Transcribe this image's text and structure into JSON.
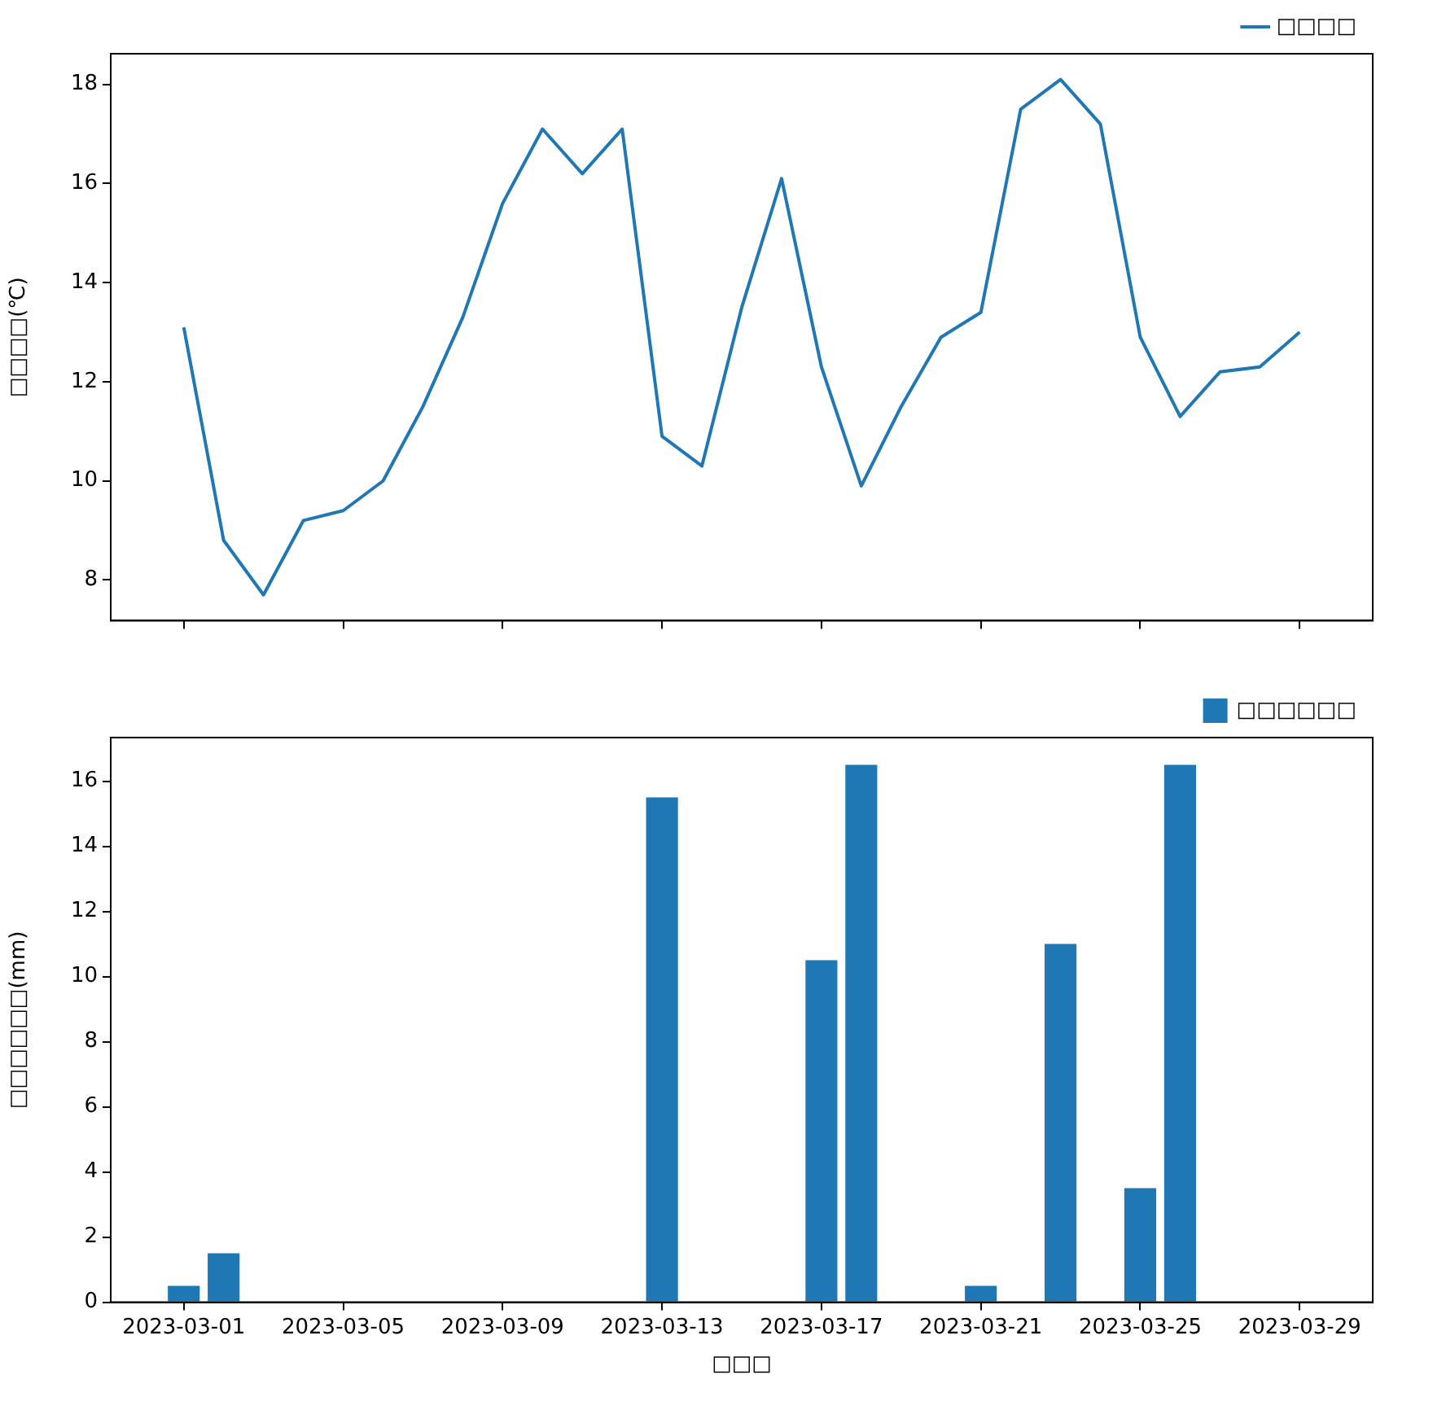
{
  "chart_data": [
    {
      "type": "line",
      "ylabel": "□□□□(℃)",
      "legend": "top right",
      "grid": false,
      "marker": "none",
      "line_style": "solid",
      "tick_labels": "y",
      "x": [
        "2023-03-01",
        "2023-03-02",
        "2023-03-03",
        "2023-03-04",
        "2023-03-05",
        "2023-03-06",
        "2023-03-07",
        "2023-03-08",
        "2023-03-09",
        "2023-03-10",
        "2023-03-11",
        "2023-03-12",
        "2023-03-13",
        "2023-03-14",
        "2023-03-15",
        "2023-03-16",
        "2023-03-17",
        "2023-03-18",
        "2023-03-19",
        "2023-03-20",
        "2023-03-21",
        "2023-03-22",
        "2023-03-23",
        "2023-03-24",
        "2023-03-25",
        "2023-03-26",
        "2023-03-27",
        "2023-03-28",
        "2023-03-29"
      ],
      "series": [
        {
          "name": "□□□□",
          "color": "#1f77b4",
          "values": [
            13.1,
            8.8,
            7.7,
            9.2,
            9.4,
            10.0,
            11.5,
            13.3,
            15.6,
            17.1,
            16.2,
            17.1,
            10.9,
            10.3,
            13.5,
            16.1,
            12.3,
            9.9,
            11.5,
            12.9,
            13.4,
            17.5,
            18.1,
            17.2,
            12.9,
            11.3,
            12.2,
            12.3,
            13.0
          ]
        }
      ],
      "xlim": [
        "2023-02-27T04:00",
        "2023-03-30T20:00"
      ],
      "xticks": [
        "2023-03-01",
        "2023-03-05",
        "2023-03-09",
        "2023-03-13",
        "2023-03-17",
        "2023-03-21",
        "2023-03-25",
        "2023-03-29"
      ],
      "ylim": [
        7.18,
        18.62
      ],
      "yticks": [
        8,
        10,
        12,
        14,
        16,
        18
      ]
    },
    {
      "type": "bar",
      "xlabel": "□□□",
      "ylabel": "□□□□□□(mm)",
      "legend": "top right",
      "grid": false,
      "x": [
        "2023-03-01",
        "2023-03-02",
        "2023-03-03",
        "2023-03-04",
        "2023-03-05",
        "2023-03-06",
        "2023-03-07",
        "2023-03-08",
        "2023-03-09",
        "2023-03-10",
        "2023-03-11",
        "2023-03-12",
        "2023-03-13",
        "2023-03-14",
        "2023-03-15",
        "2023-03-16",
        "2023-03-17",
        "2023-03-18",
        "2023-03-19",
        "2023-03-20",
        "2023-03-21",
        "2023-03-22",
        "2023-03-23",
        "2023-03-24",
        "2023-03-25",
        "2023-03-26",
        "2023-03-27",
        "2023-03-28",
        "2023-03-29"
      ],
      "series": [
        {
          "name": "□□□□□□",
          "color": "#1f77b4",
          "values": [
            0.5,
            1.5,
            0,
            0,
            0,
            0,
            0,
            0,
            0,
            0,
            0,
            0,
            15.5,
            0,
            0,
            0,
            10.5,
            16.5,
            0,
            0,
            0.5,
            0,
            11.0,
            0,
            3.5,
            16.5,
            0,
            0,
            0
          ]
        }
      ],
      "xlim": [
        "2023-02-27T04:00",
        "2023-03-30T20:00"
      ],
      "xticks": [
        "2023-03-01",
        "2023-03-05",
        "2023-03-09",
        "2023-03-13",
        "2023-03-17",
        "2023-03-21",
        "2023-03-25",
        "2023-03-29"
      ],
      "ylim": [
        0,
        17.34
      ],
      "yticks": [
        0,
        2,
        4,
        6,
        8,
        10,
        12,
        14,
        16
      ]
    }
  ]
}
